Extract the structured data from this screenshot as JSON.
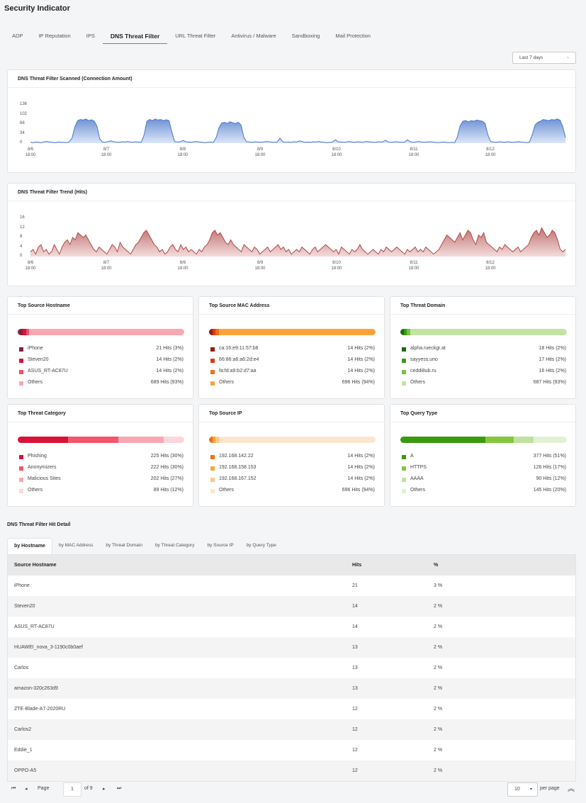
{
  "page": {
    "title": "Security Indicator"
  },
  "tabs": [
    "ADP",
    "IP Reputation",
    "IPS",
    "DNS Threat Filter",
    "URL Threat Filter",
    "Antivirus / Malware",
    "Sandboxing",
    "Mail Protection"
  ],
  "active_tab": "DNS Threat Filter",
  "range": {
    "value": "Last 7 days",
    "caret": "⌄"
  },
  "colors": {
    "blue_line": "#4a78c8",
    "red_line": "#b04a4a",
    "tab_underline": "#3d8bd9"
  },
  "chart_data": [
    {
      "type": "area",
      "title": "DNS Threat Filter Scanned (Connection Amount)",
      "yticks": [
        "136",
        "102",
        "68",
        "34",
        "0"
      ],
      "ylim": [
        0,
        136
      ],
      "xticks": [
        "8/6 18:00",
        "8/7 18:00",
        "8/8 18:00",
        "8/9 18:00",
        "8/10 18:00",
        "8/11 18:00",
        "8/12 18:00"
      ],
      "xtick_lines": [
        [
          "8/6",
          "18:00"
        ],
        [
          "8/7",
          "18:00"
        ],
        [
          "8/8",
          "18:00"
        ],
        [
          "8/9",
          "18:00"
        ],
        [
          "8/10",
          "18:00"
        ],
        [
          "8/11",
          "18:00"
        ],
        [
          "8/12",
          "18:00"
        ]
      ],
      "values": [
        3,
        2,
        4,
        3,
        2,
        5,
        6,
        4,
        3,
        2,
        4,
        3,
        3,
        2,
        5,
        18,
        58,
        80,
        84,
        82,
        86,
        80,
        83,
        78,
        60,
        15,
        4,
        3,
        6,
        8,
        5,
        4,
        3,
        5,
        4,
        6,
        4,
        3,
        5,
        4,
        3,
        30,
        78,
        84,
        80,
        86,
        82,
        84,
        80,
        83,
        80,
        40,
        6,
        4,
        5,
        10,
        5,
        4,
        3,
        5,
        6,
        4,
        3,
        2,
        3,
        4,
        3,
        20,
        55,
        72,
        74,
        70,
        76,
        72,
        70,
        74,
        64,
        20,
        5,
        4,
        3,
        5,
        4,
        3,
        4,
        6,
        5,
        4,
        3,
        4,
        18,
        5,
        3,
        4,
        3,
        5,
        4,
        8,
        6,
        3,
        4,
        3,
        5,
        4,
        6,
        4,
        3,
        2,
        3,
        4,
        12,
        5,
        4,
        3,
        4,
        6,
        4,
        3,
        5,
        4,
        3,
        6,
        5,
        4,
        3,
        4,
        5,
        4,
        10,
        5,
        3,
        4,
        5,
        4,
        3,
        4,
        12,
        5,
        3,
        4,
        6,
        4,
        3,
        4,
        5,
        4,
        3,
        2,
        3,
        4,
        3,
        2,
        3,
        2,
        22,
        62,
        78,
        80,
        76,
        80,
        78,
        82,
        80,
        78,
        70,
        30,
        6,
        4,
        3,
        5,
        4,
        3,
        5,
        4,
        3,
        4,
        5,
        4,
        3,
        2,
        3,
        30,
        64,
        74,
        78,
        84,
        82,
        80,
        84,
        82,
        86,
        82,
        60,
        20
      ]
    },
    {
      "type": "area",
      "title": "DNS Threat Filter Trend (Hits)",
      "yticks": [
        "16",
        "12",
        "8",
        "4",
        "0"
      ],
      "ylim": [
        0,
        16
      ],
      "xticks": [
        "8/6 18:00",
        "8/7 18:00",
        "8/8 18:00",
        "8/9 18:00",
        "8/10 18:00",
        "8/11 18:00",
        "8/12 18:00"
      ],
      "xtick_lines": [
        [
          "8/6",
          "18:00"
        ],
        [
          "8/7",
          "18:00"
        ],
        [
          "8/8",
          "18:00"
        ],
        [
          "8/9",
          "18:00"
        ],
        [
          "8/10",
          "18:00"
        ],
        [
          "8/11",
          "18:00"
        ],
        [
          "8/12",
          "18:00"
        ]
      ],
      "values": [
        2,
        3,
        1,
        4,
        5,
        2,
        3,
        1,
        2,
        5,
        3,
        1,
        4,
        6,
        7,
        5,
        8,
        7,
        10,
        9,
        8,
        9,
        7,
        5,
        3,
        2,
        4,
        3,
        2,
        1,
        3,
        5,
        4,
        2,
        6,
        4,
        3,
        2,
        1,
        3,
        5,
        6,
        8,
        10,
        11,
        9,
        7,
        5,
        4,
        2,
        3,
        1,
        2,
        4,
        5,
        3,
        2,
        5,
        3,
        4,
        2,
        3,
        2,
        1,
        3,
        2,
        4,
        5,
        7,
        10,
        11,
        9,
        10,
        8,
        6,
        5,
        7,
        5,
        4,
        3,
        2,
        5,
        4,
        3,
        2,
        4,
        3,
        1,
        2,
        3,
        4,
        2,
        3,
        4,
        5,
        3,
        4,
        2,
        3,
        1,
        2,
        3,
        2,
        4,
        3,
        2,
        1,
        3,
        4,
        2,
        3,
        4,
        5,
        4,
        3,
        2,
        3,
        1,
        4,
        3,
        2,
        1,
        3,
        2,
        3,
        5,
        3,
        2,
        1,
        2,
        3,
        2,
        1,
        3,
        2,
        4,
        3,
        2,
        3,
        4,
        3,
        2,
        1,
        3,
        2,
        3,
        4,
        2,
        3,
        2,
        4,
        3,
        2,
        1,
        2,
        3,
        5,
        7,
        9,
        8,
        7,
        6,
        8,
        10,
        7,
        9,
        11,
        10,
        7,
        5,
        9,
        8,
        10,
        6,
        5,
        4,
        3,
        2,
        4,
        3,
        5,
        4,
        3,
        2,
        3,
        4,
        2,
        3,
        4,
        5,
        8,
        10,
        11,
        9,
        12,
        10,
        8,
        9,
        11,
        10,
        7,
        3,
        2,
        3
      ]
    },
    {
      "type": "bar",
      "title": "Top Source Hostname",
      "items": [
        {
          "name": "iPhone",
          "label": "21 Hits (3%)",
          "pct": 3,
          "color": "#8a1f3c"
        },
        {
          "name": "Steven20",
          "label": "14 Hits (2%)",
          "pct": 2,
          "color": "#d8133a"
        },
        {
          "name": "ASUS_RT-AC87U",
          "label": "14 Hits (2%)",
          "pct": 2,
          "color": "#f0506a"
        },
        {
          "name": "Others",
          "label": "689 Hits (93%)",
          "pct": 93,
          "color": "#f8a8b3"
        }
      ]
    },
    {
      "type": "bar",
      "title": "Top Source MAC Address",
      "items": [
        {
          "name": "ca:16:e9:11:57:b8",
          "label": "14 Hits (2%)",
          "pct": 2,
          "color": "#9a1a10"
        },
        {
          "name": "66:86:a6:a6:2d:e4",
          "label": "14 Hits (2%)",
          "pct": 2,
          "color": "#e13a14"
        },
        {
          "name": "fa:fd:a9:b2:d7:aa",
          "label": "14 Hits (2%)",
          "pct": 2,
          "color": "#f06f16"
        },
        {
          "name": "Others",
          "label": "696 Hits (94%)",
          "pct": 94,
          "color": "#fba33a"
        }
      ]
    },
    {
      "type": "bar",
      "title": "Top Threat Domain",
      "items": [
        {
          "name": "alpha.rueckgr.at",
          "label": "18 Hits (2%)",
          "pct": 2,
          "color": "#1d6a0e"
        },
        {
          "name": "sayyess.uno",
          "label": "17 Hits (2%)",
          "pct": 2,
          "color": "#3a9a1e"
        },
        {
          "name": "ceddi8ub.ru",
          "label": "16 Hits (2%)",
          "pct": 2,
          "color": "#77c23e"
        },
        {
          "name": "Others",
          "label": "687 Hits (93%)",
          "pct": 93,
          "color": "#c3e3a3"
        }
      ]
    },
    {
      "type": "bar",
      "title": "Top Threat Category",
      "items": [
        {
          "name": "Phishing",
          "label": "225 Hits (30%)",
          "pct": 30,
          "color": "#d8133a"
        },
        {
          "name": "Anonymizers",
          "label": "222 Hits (30%)",
          "pct": 30,
          "color": "#f3566a"
        },
        {
          "name": "Malicious Sites",
          "label": "202 Hits (27%)",
          "pct": 27,
          "color": "#f8a8b3"
        },
        {
          "name": "Others",
          "label": "89 Hits (12%)",
          "pct": 12,
          "color": "#fcd6dc"
        }
      ]
    },
    {
      "type": "bar",
      "title": "Top Source IP",
      "items": [
        {
          "name": "192.168.142.22",
          "label": "14 Hits (2%)",
          "pct": 2,
          "color": "#f06f16"
        },
        {
          "name": "192.168.158.153",
          "label": "14 Hits (2%)",
          "pct": 2,
          "color": "#fba33a"
        },
        {
          "name": "192.168.167.152",
          "label": "14 Hits (2%)",
          "pct": 2,
          "color": "#fcc78a"
        },
        {
          "name": "Others",
          "label": "696 Hits (94%)",
          "pct": 94,
          "color": "#fde6cf"
        }
      ]
    },
    {
      "type": "bar",
      "title": "Top Query Type",
      "items": [
        {
          "name": "A",
          "label": "377 Hits (51%)",
          "pct": 51,
          "color": "#3a9a0e"
        },
        {
          "name": "HTTPS",
          "label": "126 Hits (17%)",
          "pct": 17,
          "color": "#84c73c"
        },
        {
          "name": "AAAA",
          "label": "90 Hits (12%)",
          "pct": 12,
          "color": "#bfe2a0"
        },
        {
          "name": "Others",
          "label": "145 Hits (20%)",
          "pct": 20,
          "color": "#e2f1d4"
        }
      ]
    }
  ],
  "detail": {
    "title": "DNS Threat Filter Hit Detail",
    "tabs": [
      "by Hostname",
      "by MAC Address",
      "by Threat Domain",
      "by Threat Category",
      "by Source IP",
      "by Query Type"
    ],
    "active_tab": "by Hostname",
    "columns": [
      "Source Hostname",
      "Hits",
      "%"
    ],
    "rows": [
      [
        "iPhone",
        "21",
        "3 %"
      ],
      [
        "Steven20",
        "14",
        "2 %"
      ],
      [
        "ASUS_RT-AC87U",
        "14",
        "2 %"
      ],
      [
        "HUAWEI_nova_3-1190c0b0aef",
        "13",
        "2 %"
      ],
      [
        "Carlos",
        "13",
        "2 %"
      ],
      [
        "amazon-320c263d9",
        "13",
        "2 %"
      ],
      [
        "ZTE-Blade-A7-2020RU",
        "12",
        "2 %"
      ],
      [
        "Carlos2",
        "12",
        "2 %"
      ],
      [
        "Eddie_1",
        "12",
        "2 %"
      ],
      [
        "OPPO-A5",
        "12",
        "2 %"
      ]
    ]
  },
  "pager": {
    "first": "⏮",
    "prev": "◂",
    "page_label": "Page",
    "page": "1",
    "of": "of 9",
    "next": "▸",
    "last": "⏭",
    "per_page": "10",
    "per_page_caret": "▾",
    "per_page_label": "per page",
    "scroll_top": "︽"
  }
}
